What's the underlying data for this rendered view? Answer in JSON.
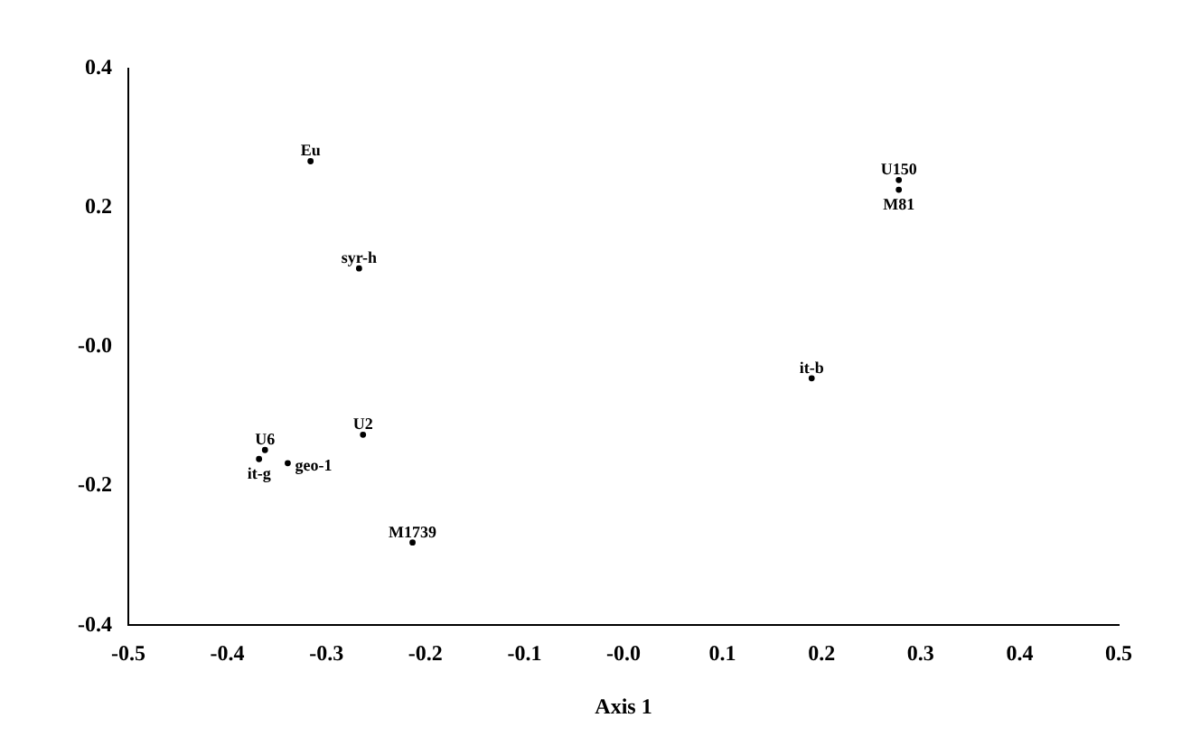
{
  "chart_data": {
    "type": "scatter",
    "xlabel": "Axis 1",
    "marker": "circle",
    "grid": false,
    "legend": false,
    "x": [
      -0.316,
      -0.267,
      -0.263,
      -0.362,
      -0.368,
      -0.339,
      -0.213,
      0.278,
      0.278,
      0.19
    ],
    "values": [
      0.267,
      0.113,
      -0.126,
      -0.148,
      -0.161,
      -0.167,
      -0.281,
      0.24,
      0.226,
      -0.045
    ],
    "value_labels": [
      "Eu",
      "syr-h",
      "U2",
      "U6",
      "it-g",
      "geo-1",
      "M1739",
      "U150",
      "M81",
      "it-b"
    ],
    "xlim": [
      -0.5,
      0.5
    ],
    "xticks": [
      -0.5,
      -0.4,
      -0.3,
      -0.2,
      -0.1,
      {
        "value": 0,
        "label": "-0.0"
      },
      0.1,
      0.2,
      0.3,
      0.4,
      0.5
    ],
    "ylim": [
      -0.4,
      0.4
    ],
    "yticks": [
      -0.4,
      -0.2,
      {
        "value": 0,
        "label": "-0.0"
      },
      0.2,
      0.4
    ]
  }
}
